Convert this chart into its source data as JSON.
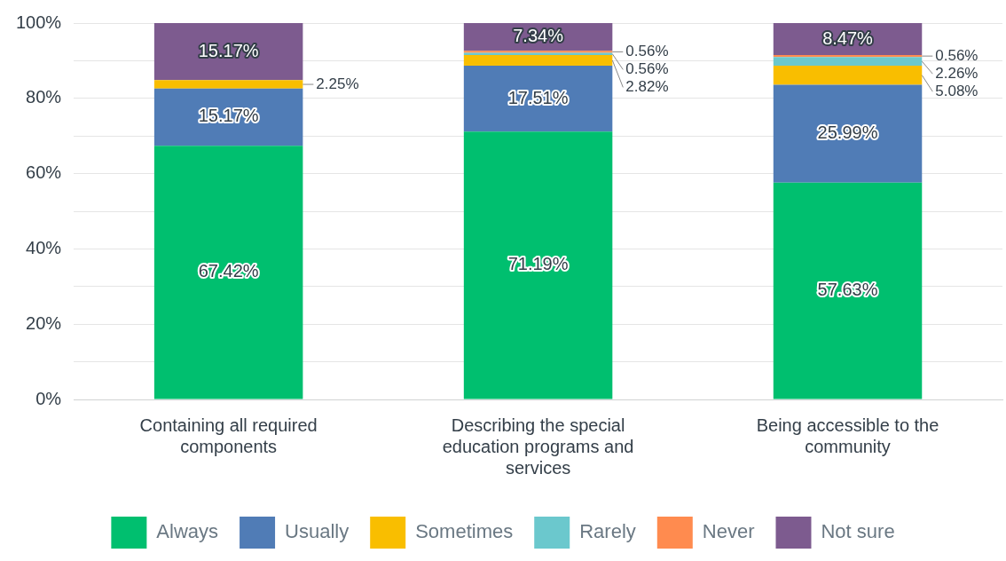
{
  "chart_data": {
    "type": "bar",
    "stacked": true,
    "categories": [
      "Containing all required components",
      "Describing the special education programs and services",
      "Being accessible to the community"
    ],
    "series": [
      {
        "name": "Always",
        "color": "#00bf6f",
        "values": [
          67.42,
          71.19,
          57.63
        ],
        "value_labels": [
          "67.42%",
          "71.19%",
          "57.63%"
        ]
      },
      {
        "name": "Usually",
        "color": "#507cb6",
        "values": [
          15.17,
          17.51,
          25.99
        ],
        "value_labels": [
          "15.17%",
          "17.51%",
          "25.99%"
        ]
      },
      {
        "name": "Sometimes",
        "color": "#f9be00",
        "values": [
          2.25,
          2.82,
          5.08
        ],
        "value_labels": [
          "2.25%",
          "2.82%",
          "5.08%"
        ]
      },
      {
        "name": "Rarely",
        "color": "#6bc8cd",
        "values": [
          0,
          0.56,
          2.26
        ],
        "value_labels": [
          null,
          "0.56%",
          "2.26%"
        ]
      },
      {
        "name": "Never",
        "color": "#ff8b4f",
        "values": [
          0,
          0.56,
          0.56
        ],
        "value_labels": [
          null,
          "0.56%",
          "0.56%"
        ]
      },
      {
        "name": "Not sure",
        "color": "#7d5b8f",
        "values": [
          15.17,
          7.34,
          8.47
        ],
        "value_labels": [
          "15.17%",
          "7.34%",
          "8.47%"
        ]
      }
    ],
    "ylim": [
      0,
      100
    ],
    "yticks": [
      {
        "value": 0,
        "label": "0%"
      },
      {
        "value": 10,
        "label": null
      },
      {
        "value": 20,
        "label": "20%"
      },
      {
        "value": 30,
        "label": null
      },
      {
        "value": 40,
        "label": "40%"
      },
      {
        "value": 50,
        "label": null
      },
      {
        "value": 60,
        "label": "60%"
      },
      {
        "value": 70,
        "label": null
      },
      {
        "value": 80,
        "label": "80%"
      },
      {
        "value": 90,
        "label": null
      },
      {
        "value": 100,
        "label": "100%"
      }
    ],
    "grid": "y",
    "legend": "bottom"
  }
}
